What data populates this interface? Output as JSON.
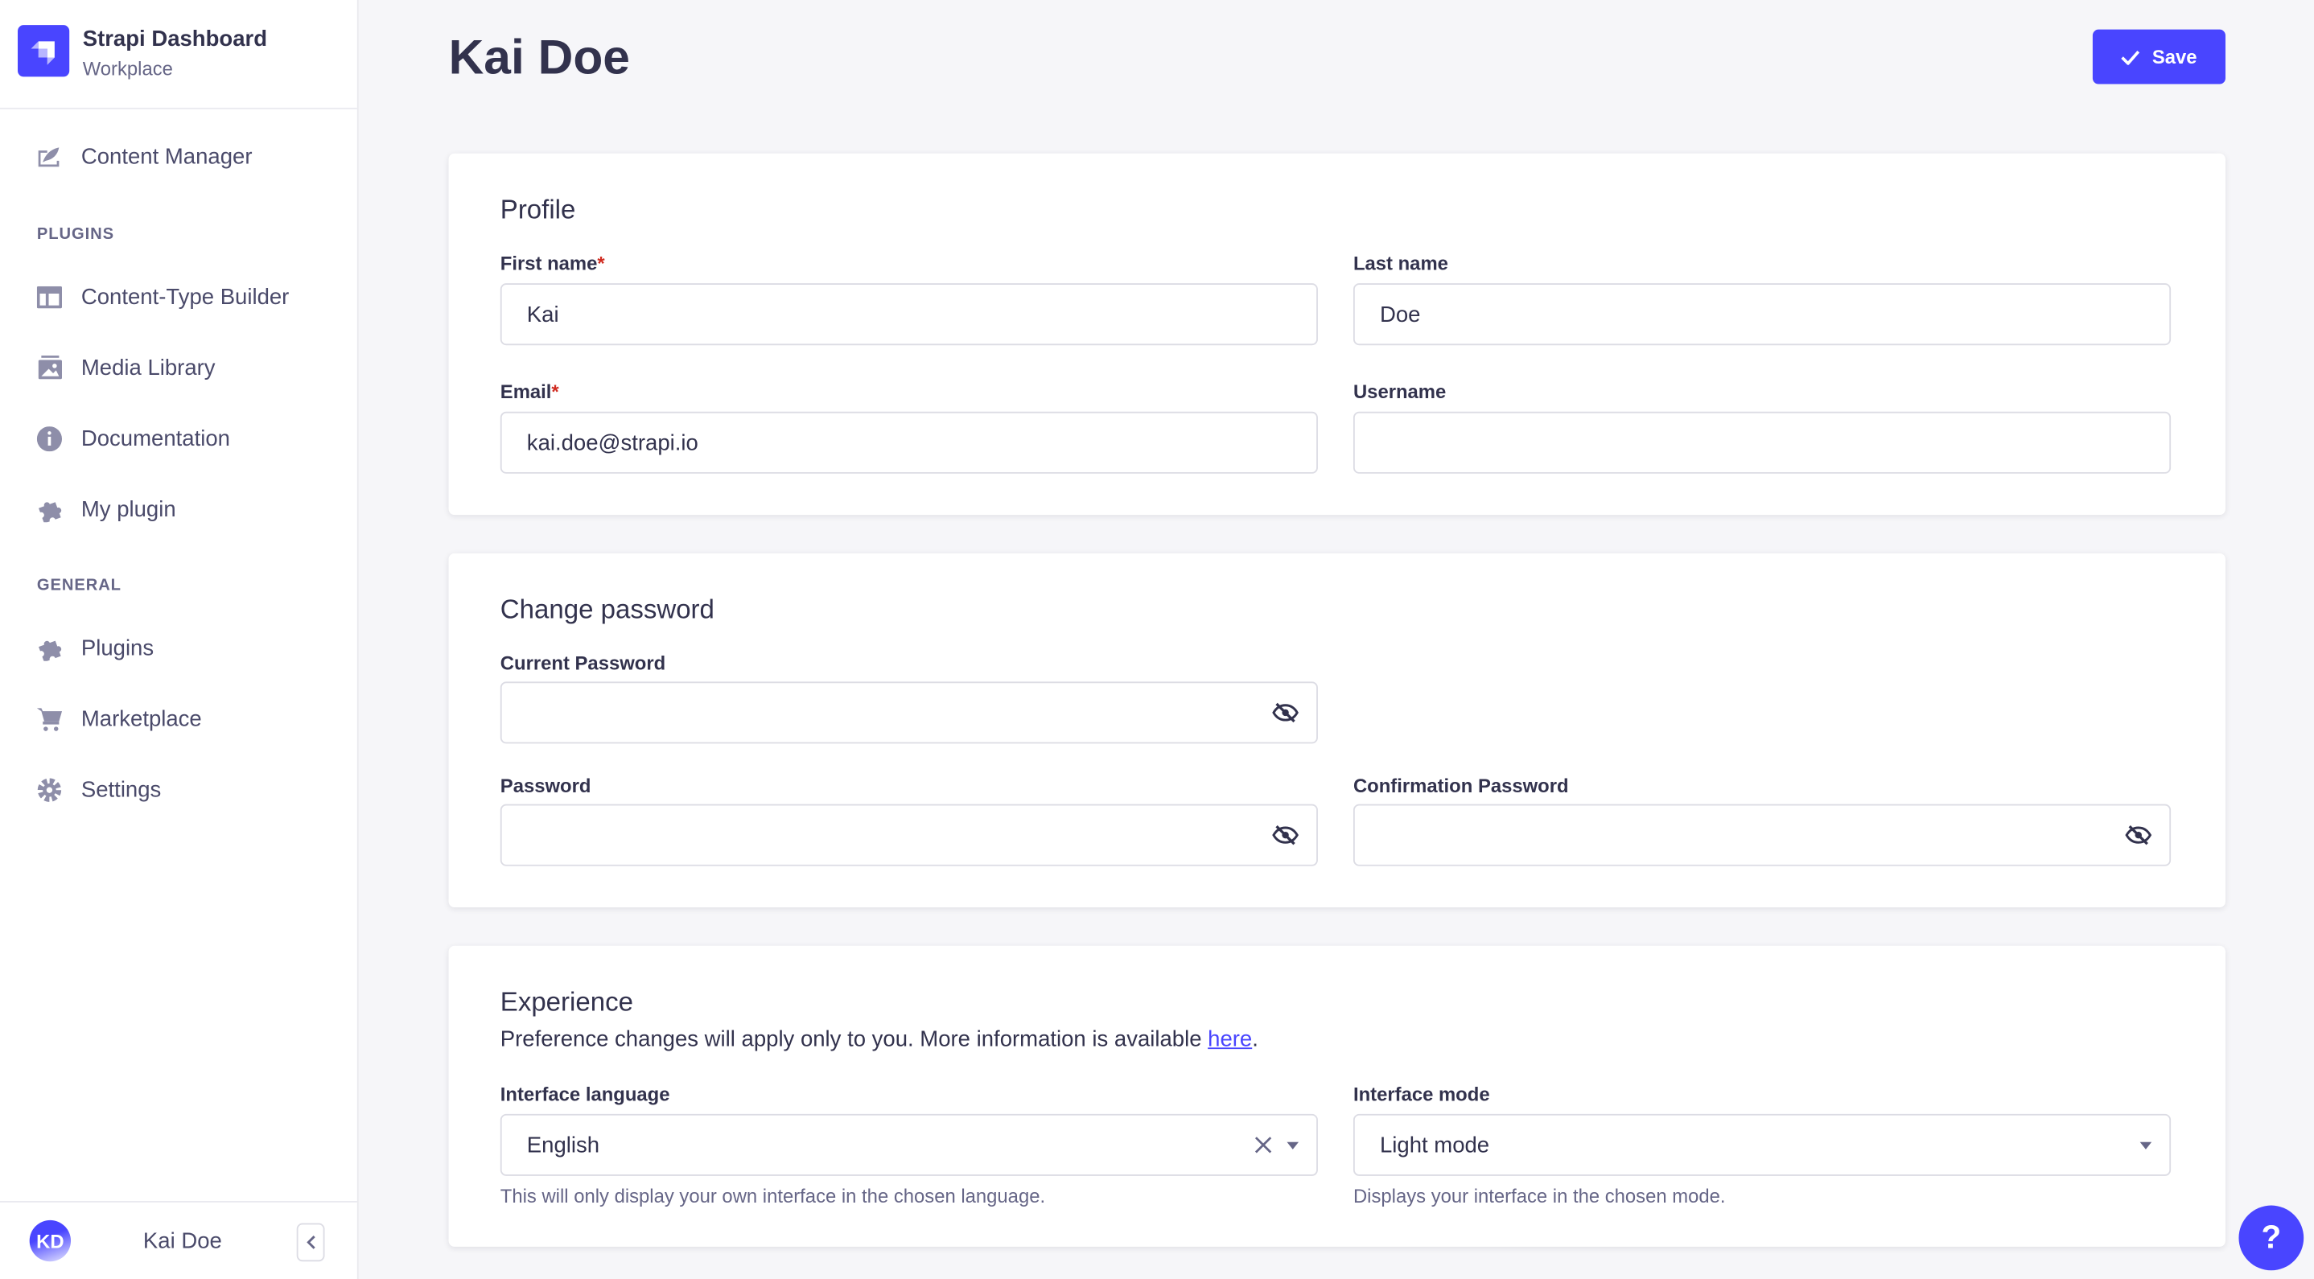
{
  "sidebar": {
    "brand_title": "Strapi Dashboard",
    "brand_subtitle": "Workplace",
    "content_manager": "Content Manager",
    "plugins_section": "PLUGINS",
    "plugins_items": [
      {
        "label": "Content-Type Builder",
        "icon": "layout-icon"
      },
      {
        "label": "Media Library",
        "icon": "image-icon"
      },
      {
        "label": "Documentation",
        "icon": "info-icon"
      },
      {
        "label": "My plugin",
        "icon": "puzzle-icon"
      }
    ],
    "general_section": "GENERAL",
    "general_items": [
      {
        "label": "Plugins",
        "icon": "puzzle-icon"
      },
      {
        "label": "Marketplace",
        "icon": "cart-icon"
      },
      {
        "label": "Settings",
        "icon": "gear-icon"
      }
    ],
    "user_initials": "KD",
    "user_name": "Kai Doe"
  },
  "header": {
    "title": "Kai Doe",
    "save_label": "Save"
  },
  "profile": {
    "heading": "Profile",
    "first_name_label": "First name",
    "first_name_value": "Kai",
    "last_name_label": "Last name",
    "last_name_value": "Doe",
    "email_label": "Email",
    "email_value": "kai.doe@strapi.io",
    "username_label": "Username",
    "username_value": "",
    "required_mark": "*"
  },
  "password": {
    "heading": "Change password",
    "current_label": "Current Password",
    "password_label": "Password",
    "confirm_label": "Confirmation Password"
  },
  "experience": {
    "heading": "Experience",
    "description": "Preference changes will apply only to you. More information is available ",
    "link_text": "here",
    "description_end": ".",
    "language_label": "Interface language",
    "language_value": "English",
    "language_hint": "This will only display your own interface in the chosen language.",
    "mode_label": "Interface mode",
    "mode_value": "Light mode",
    "mode_hint": "Displays your interface in the chosen mode."
  },
  "help_label": "?",
  "colors": {
    "primary": "#4945ff",
    "text": "#32324d",
    "muted": "#666687",
    "required": "#d02b20"
  }
}
